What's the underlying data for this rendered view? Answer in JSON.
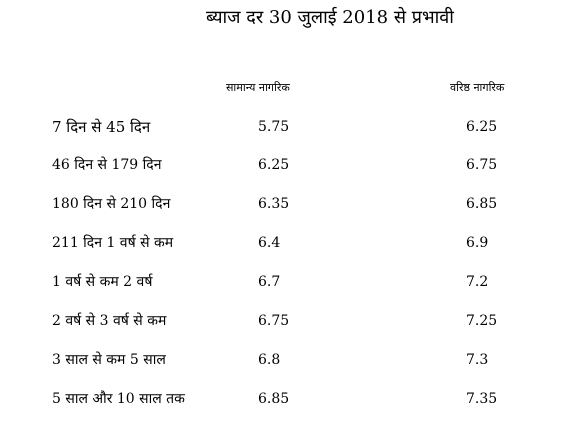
{
  "title": "ब्याज दर 30 जुलाई 2018 से प्रभावी",
  "columns": {
    "general": "सामान्य नागरिक",
    "senior": "वरिष्ठ नागरिक"
  },
  "rows": [
    {
      "term": "7  दिन से 45 दिन",
      "general": "5.75",
      "senior": "6.25"
    },
    {
      "term": "46 दिन से 179 दिन",
      "general": "6.25",
      "senior": "6.75"
    },
    {
      "term": "180 दिन से 210 दिन",
      "general": "6.35",
      "senior": "6.85"
    },
    {
      "term": "211 दिन 1 वर्ष से कम",
      "general": "6.4",
      "senior": "6.9"
    },
    {
      "term": "1 वर्ष से कम 2 वर्ष",
      "general": "6.7",
      "senior": "7.2"
    },
    {
      "term": "2 वर्ष से 3 वर्ष से कम",
      "general": "6.75",
      "senior": "7.25"
    },
    {
      "term": "3 साल से कम 5 साल",
      "general": "6.8",
      "senior": "7.3"
    },
    {
      "term": "5 साल और 10 साल तक",
      "general": "6.85",
      "senior": "7.35"
    }
  ]
}
